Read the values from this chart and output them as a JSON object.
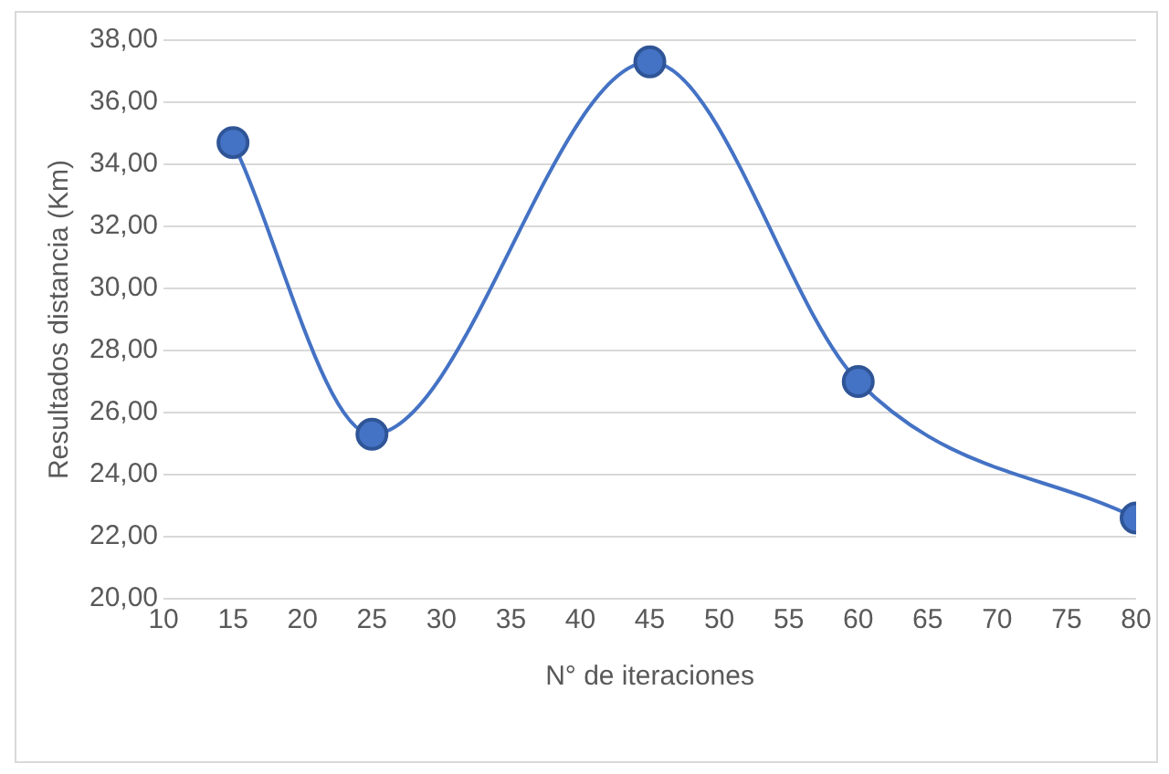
{
  "chart_data": {
    "type": "line",
    "xlabel": "N° de iteraciones",
    "ylabel": "Resultados distancia (Km)",
    "x": [
      15,
      25,
      45,
      60,
      80
    ],
    "series": [
      {
        "color": "#4472c4",
        "values": [
          34.7,
          25.3,
          37.3,
          27.0,
          22.6
        ]
      }
    ],
    "xlim": [
      10,
      80
    ],
    "xticks": [
      10,
      15,
      20,
      25,
      30,
      35,
      40,
      45,
      50,
      55,
      60,
      65,
      70,
      75,
      80
    ],
    "ylim": [
      20,
      38
    ],
    "yticks": [
      {
        "value": 20,
        "label": "20,00"
      },
      {
        "value": 22,
        "label": "22,00"
      },
      {
        "value": 24,
        "label": "24,00"
      },
      {
        "value": 26,
        "label": "26,00"
      },
      {
        "value": 28,
        "label": "28,00"
      },
      {
        "value": 30,
        "label": "30,00"
      },
      {
        "value": 32,
        "label": "32,00"
      },
      {
        "value": 34,
        "label": "34,00"
      },
      {
        "value": 36,
        "label": "36,00"
      },
      {
        "value": 38,
        "label": "38,00"
      }
    ],
    "grid": "y",
    "legend": false,
    "marker": "circle",
    "line_style": "solid"
  }
}
